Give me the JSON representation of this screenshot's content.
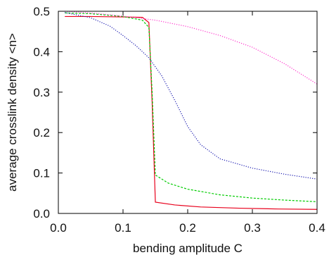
{
  "chart_data": {
    "type": "line",
    "xlabel": "bending amplitude C",
    "ylabel": "average crosslink density <n>",
    "xlim": [
      0.0,
      0.4
    ],
    "ylim": [
      0.0,
      0.5
    ],
    "xticks": [
      "0.0",
      "0.1",
      "0.2",
      "0.3",
      "0.4"
    ],
    "yticks": [
      "0.0",
      "0.1",
      "0.2",
      "0.3",
      "0.4",
      "0.5"
    ],
    "grid": false,
    "legend": "none",
    "series": [
      {
        "color": "#e8001c",
        "style": "solid",
        "points": [
          [
            0.01,
            0.487
          ],
          [
            0.05,
            0.487
          ],
          [
            0.1,
            0.486
          ],
          [
            0.13,
            0.485
          ],
          [
            0.14,
            0.472
          ],
          [
            0.145,
            0.275
          ],
          [
            0.15,
            0.028
          ],
          [
            0.18,
            0.021
          ],
          [
            0.22,
            0.016
          ],
          [
            0.28,
            0.013
          ],
          [
            0.34,
            0.011
          ],
          [
            0.4,
            0.01
          ]
        ]
      },
      {
        "color": "#00cc00",
        "style": "dashed",
        "points": [
          [
            0.01,
            0.496
          ],
          [
            0.05,
            0.494
          ],
          [
            0.1,
            0.487
          ],
          [
            0.13,
            0.478
          ],
          [
            0.14,
            0.46
          ],
          [
            0.145,
            0.3
          ],
          [
            0.15,
            0.095
          ],
          [
            0.17,
            0.075
          ],
          [
            0.2,
            0.06
          ],
          [
            0.25,
            0.046
          ],
          [
            0.3,
            0.038
          ],
          [
            0.35,
            0.033
          ],
          [
            0.4,
            0.029
          ]
        ]
      },
      {
        "color": "#1a1ab0",
        "style": "dotted",
        "points": [
          [
            0.01,
            0.497
          ],
          [
            0.05,
            0.484
          ],
          [
            0.08,
            0.463
          ],
          [
            0.1,
            0.44
          ],
          [
            0.12,
            0.415
          ],
          [
            0.14,
            0.385
          ],
          [
            0.16,
            0.34
          ],
          [
            0.18,
            0.28
          ],
          [
            0.2,
            0.215
          ],
          [
            0.22,
            0.17
          ],
          [
            0.25,
            0.135
          ],
          [
            0.3,
            0.112
          ],
          [
            0.35,
            0.097
          ],
          [
            0.4,
            0.085
          ]
        ]
      },
      {
        "color": "#ff33cc",
        "style": "dotted",
        "points": [
          [
            0.01,
            0.5
          ],
          [
            0.05,
            0.496
          ],
          [
            0.1,
            0.488
          ],
          [
            0.15,
            0.478
          ],
          [
            0.2,
            0.462
          ],
          [
            0.25,
            0.44
          ],
          [
            0.3,
            0.411
          ],
          [
            0.35,
            0.37
          ],
          [
            0.4,
            0.32
          ]
        ]
      }
    ]
  }
}
